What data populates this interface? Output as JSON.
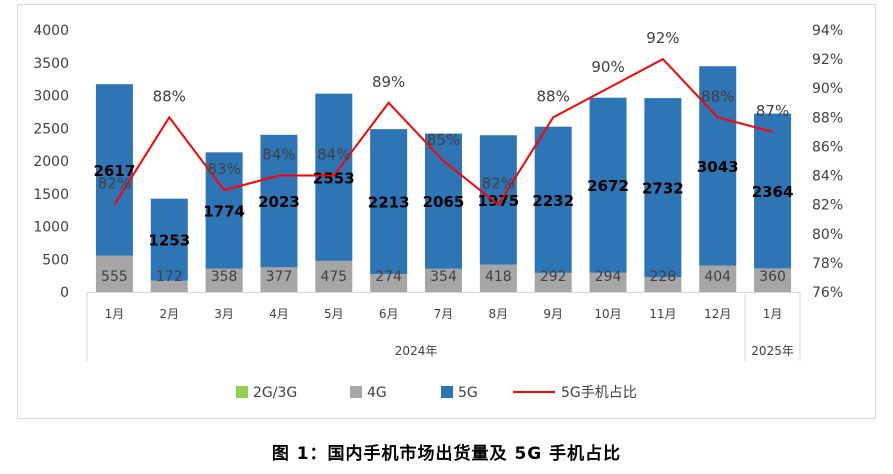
{
  "caption": "图 1：国内手机市场出货量及 5G 手机占比",
  "chart_data": {
    "type": "bar",
    "categories": [
      "1月",
      "2月",
      "3月",
      "4月",
      "5月",
      "6月",
      "7月",
      "8月",
      "9月",
      "10月",
      "11月",
      "12月",
      "1月"
    ],
    "year_groups": [
      {
        "label": "2024年",
        "start": 0,
        "end": 11
      },
      {
        "label": "2025年",
        "start": 12,
        "end": 12
      }
    ],
    "series": [
      {
        "name": "2G/3G",
        "kind": "stacked-bar",
        "color": "#92d050",
        "values": [
          0,
          0,
          0,
          0,
          0,
          0,
          0,
          0,
          0,
          0,
          0,
          0,
          0
        ]
      },
      {
        "name": "4G",
        "kind": "stacked-bar",
        "color": "#a6a6a6",
        "values": [
          555,
          172,
          358,
          377,
          475,
          274,
          354,
          418,
          292,
          294,
          228,
          404,
          360
        ]
      },
      {
        "name": "5G",
        "kind": "stacked-bar",
        "color": "#2e75b6",
        "values": [
          2617,
          1253,
          1774,
          2023,
          2553,
          2213,
          2065,
          1975,
          2232,
          2672,
          2732,
          3043,
          2364
        ]
      },
      {
        "name": "5G手机占比",
        "kind": "line",
        "axis": "right",
        "color": "#ff0000",
        "values": [
          82,
          88,
          83,
          84,
          84,
          89,
          85,
          82,
          88,
          90,
          92,
          88,
          87
        ],
        "labels": [
          "82%",
          "88%",
          "83%",
          "84%",
          "84%",
          "89%",
          "85%",
          "82%",
          "88%",
          "90%",
          "92%",
          "88%",
          "87%"
        ]
      }
    ],
    "ylim_left": [
      0,
      4000
    ],
    "yticks_left": [
      "0",
      "500",
      "1000",
      "1500",
      "2000",
      "2500",
      "3000",
      "3500",
      "4000"
    ],
    "ylim_right": [
      76,
      94
    ],
    "yticks_right": [
      "76%",
      "78%",
      "80%",
      "82%",
      "84%",
      "86%",
      "88%",
      "90%",
      "92%",
      "94%"
    ],
    "grid": false,
    "legend_position": "bottom"
  }
}
